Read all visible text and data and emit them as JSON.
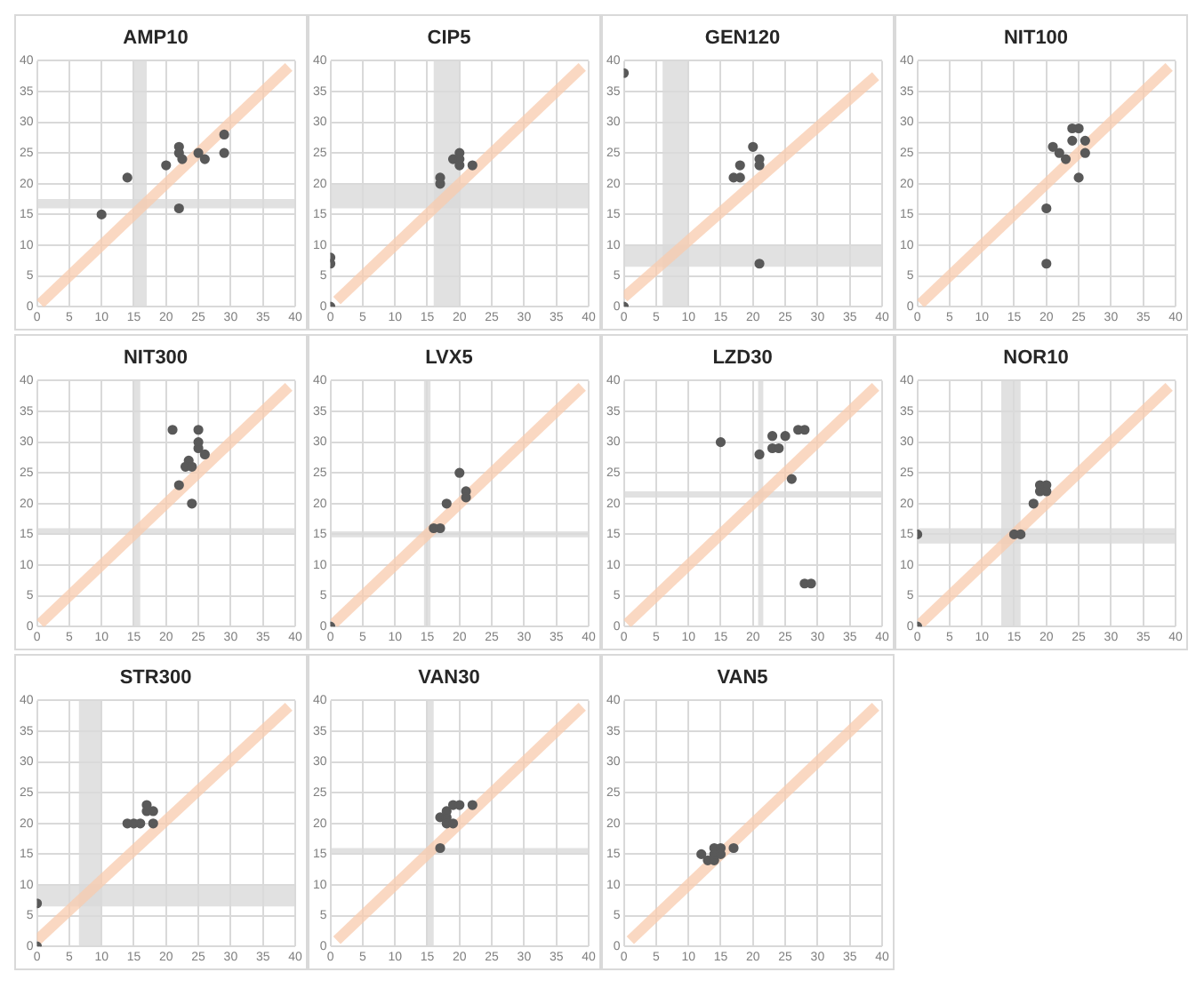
{
  "chart_data": [
    {
      "type": "scatter",
      "title": "AMP10",
      "xlim": [
        0,
        40
      ],
      "ylim": [
        0,
        40
      ],
      "xticks": [
        0,
        5,
        10,
        15,
        20,
        25,
        30,
        35,
        40
      ],
      "yticks": [
        0,
        5,
        10,
        15,
        20,
        25,
        30,
        35,
        40
      ],
      "grid": true,
      "bands": [
        {
          "axis": "x",
          "from": 15,
          "to": 17,
          "color": "#d9d9d9"
        },
        {
          "axis": "y",
          "from": 16,
          "to": 17.5,
          "color": "#d9d9d9"
        }
      ],
      "series": [
        {
          "type": "scatter",
          "marker": "circle",
          "color": "#595959",
          "x": [
            10,
            14,
            20,
            22,
            22,
            22.5,
            22,
            25,
            26,
            29,
            29
          ],
          "values": [
            15,
            21,
            23,
            26,
            25,
            24,
            16,
            25,
            24,
            28,
            25
          ]
        },
        {
          "type": "line",
          "marker": "none",
          "color": "#f8cbad",
          "x": [
            0.5,
            39
          ],
          "values": [
            0.5,
            39
          ]
        }
      ]
    },
    {
      "type": "scatter",
      "title": "CIP5",
      "xlim": [
        0,
        40
      ],
      "ylim": [
        0,
        40
      ],
      "xticks": [
        0,
        5,
        10,
        15,
        20,
        25,
        30,
        35,
        40
      ],
      "yticks": [
        0,
        5,
        10,
        15,
        20,
        25,
        30,
        35,
        40
      ],
      "grid": true,
      "bands": [
        {
          "axis": "x",
          "from": 16,
          "to": 20,
          "color": "#d9d9d9"
        },
        {
          "axis": "y",
          "from": 16,
          "to": 20,
          "color": "#d9d9d9"
        }
      ],
      "series": [
        {
          "type": "scatter",
          "marker": "circle",
          "color": "#595959",
          "x": [
            0,
            0,
            0,
            17,
            17,
            19,
            20,
            20,
            20,
            22
          ],
          "values": [
            0,
            7,
            8,
            20,
            21,
            24,
            24,
            25,
            23,
            23
          ]
        },
        {
          "type": "line",
          "marker": "none",
          "color": "#f8cbad",
          "x": [
            1,
            39
          ],
          "values": [
            1,
            39
          ]
        }
      ]
    },
    {
      "type": "scatter",
      "title": "GEN120",
      "xlim": [
        0,
        40
      ],
      "ylim": [
        0,
        40
      ],
      "xticks": [
        0,
        5,
        10,
        15,
        20,
        25,
        30,
        35,
        40
      ],
      "yticks": [
        0,
        5,
        10,
        15,
        20,
        25,
        30,
        35,
        40
      ],
      "grid": true,
      "bands": [
        {
          "axis": "x",
          "from": 6,
          "to": 10,
          "color": "#d9d9d9"
        },
        {
          "axis": "y",
          "from": 6.5,
          "to": 10,
          "color": "#d9d9d9"
        }
      ],
      "series": [
        {
          "type": "scatter",
          "marker": "circle",
          "color": "#595959",
          "x": [
            0,
            0,
            17,
            18,
            18,
            20,
            21,
            21,
            21
          ],
          "values": [
            38,
            0,
            21,
            21,
            23,
            26,
            24,
            23,
            7
          ]
        },
        {
          "type": "line",
          "marker": "none",
          "color": "#f8cbad",
          "x": [
            0,
            39
          ],
          "values": [
            1.5,
            37.5
          ]
        }
      ]
    },
    {
      "type": "scatter",
      "title": "NIT100",
      "xlim": [
        0,
        40
      ],
      "ylim": [
        0,
        40
      ],
      "xticks": [
        0,
        5,
        10,
        15,
        20,
        25,
        30,
        35,
        40
      ],
      "yticks": [
        0,
        5,
        10,
        15,
        20,
        25,
        30,
        35,
        40
      ],
      "grid": true,
      "series": [
        {
          "type": "scatter",
          "marker": "circle",
          "color": "#595959",
          "x": [
            20,
            20,
            21,
            22,
            23,
            24,
            25,
            24,
            26,
            26,
            25
          ],
          "values": [
            16,
            7,
            26,
            25,
            24,
            29,
            29,
            27,
            27,
            25,
            21
          ]
        },
        {
          "type": "line",
          "marker": "none",
          "color": "#f8cbad",
          "x": [
            0.5,
            39
          ],
          "values": [
            0.5,
            39
          ]
        }
      ]
    },
    {
      "type": "scatter",
      "title": "NIT300",
      "xlim": [
        0,
        40
      ],
      "ylim": [
        0,
        40
      ],
      "xticks": [
        0,
        5,
        10,
        15,
        20,
        25,
        30,
        35,
        40
      ],
      "yticks": [
        0,
        5,
        10,
        15,
        20,
        25,
        30,
        35,
        40
      ],
      "grid": true,
      "bands": [
        {
          "axis": "x",
          "from": 15,
          "to": 16,
          "color": "#d9d9d9"
        },
        {
          "axis": "y",
          "from": 15,
          "to": 16,
          "color": "#d9d9d9"
        }
      ],
      "series": [
        {
          "type": "scatter",
          "marker": "circle",
          "color": "#595959",
          "x": [
            21,
            25,
            25,
            25,
            26,
            23.5,
            23,
            24,
            22,
            24
          ],
          "values": [
            32,
            32,
            30,
            29,
            28,
            27,
            26,
            26,
            23,
            20
          ]
        },
        {
          "type": "line",
          "marker": "none",
          "color": "#f8cbad",
          "x": [
            0.5,
            39
          ],
          "values": [
            0.5,
            39
          ]
        }
      ]
    },
    {
      "type": "scatter",
      "title": "LVX5",
      "xlim": [
        0,
        40
      ],
      "ylim": [
        0,
        40
      ],
      "xticks": [
        0,
        5,
        10,
        15,
        20,
        25,
        30,
        35,
        40
      ],
      "yticks": [
        0,
        5,
        10,
        15,
        20,
        25,
        30,
        35,
        40
      ],
      "grid": true,
      "bands": [
        {
          "axis": "x",
          "from": 14.5,
          "to": 15.5,
          "color": "#d9d9d9"
        },
        {
          "axis": "y",
          "from": 14.5,
          "to": 15.5,
          "color": "#d9d9d9"
        }
      ],
      "series": [
        {
          "type": "scatter",
          "marker": "circle",
          "color": "#595959",
          "x": [
            0,
            16,
            17,
            18,
            20,
            21,
            21
          ],
          "values": [
            0,
            16,
            16,
            20,
            25,
            22,
            21
          ]
        },
        {
          "type": "line",
          "marker": "none",
          "color": "#f8cbad",
          "x": [
            0.5,
            39
          ],
          "values": [
            0.5,
            39
          ]
        }
      ]
    },
    {
      "type": "scatter",
      "title": "LZD30",
      "xlim": [
        0,
        40
      ],
      "ylim": [
        0,
        40
      ],
      "xticks": [
        0,
        5,
        10,
        15,
        20,
        25,
        30,
        35,
        40
      ],
      "yticks": [
        0,
        5,
        10,
        15,
        20,
        25,
        30,
        35,
        40
      ],
      "grid": true,
      "bands": [
        {
          "axis": "x",
          "from": 20.8,
          "to": 21.6,
          "color": "#d9d9d9"
        },
        {
          "axis": "y",
          "from": 21,
          "to": 22,
          "color": "#d9d9d9"
        }
      ],
      "series": [
        {
          "type": "scatter",
          "marker": "circle",
          "color": "#595959",
          "x": [
            15,
            21,
            23,
            25,
            23,
            24,
            27,
            28,
            26,
            28,
            29
          ],
          "values": [
            30,
            28,
            31,
            31,
            29,
            29,
            32,
            32,
            24,
            7,
            7
          ]
        },
        {
          "type": "line",
          "marker": "none",
          "color": "#f8cbad",
          "x": [
            0.5,
            39
          ],
          "values": [
            0.5,
            39
          ]
        }
      ]
    },
    {
      "type": "scatter",
      "title": "NOR10",
      "xlim": [
        0,
        40
      ],
      "ylim": [
        0,
        40
      ],
      "xticks": [
        0,
        5,
        10,
        15,
        20,
        25,
        30,
        35,
        40
      ],
      "yticks": [
        0,
        5,
        10,
        15,
        20,
        25,
        30,
        35,
        40
      ],
      "grid": true,
      "bands": [
        {
          "axis": "x",
          "from": 13,
          "to": 16,
          "color": "#d9d9d9"
        },
        {
          "axis": "y",
          "from": 13.5,
          "to": 16,
          "color": "#d9d9d9"
        }
      ],
      "series": [
        {
          "type": "scatter",
          "marker": "circle",
          "color": "#595959",
          "x": [
            0,
            0,
            15,
            16,
            18,
            19,
            19,
            20,
            20
          ],
          "values": [
            15,
            0,
            15,
            15,
            20,
            22,
            23,
            22,
            23
          ]
        },
        {
          "type": "line",
          "marker": "none",
          "color": "#f8cbad",
          "x": [
            0.5,
            39
          ],
          "values": [
            0.5,
            39
          ]
        }
      ]
    },
    {
      "type": "scatter",
      "title": "STR300",
      "xlim": [
        0,
        40
      ],
      "ylim": [
        0,
        40
      ],
      "xticks": [
        0,
        5,
        10,
        15,
        20,
        25,
        30,
        35,
        40
      ],
      "yticks": [
        0,
        5,
        10,
        15,
        20,
        25,
        30,
        35,
        40
      ],
      "grid": true,
      "bands": [
        {
          "axis": "x",
          "from": 6.5,
          "to": 10,
          "color": "#d9d9d9"
        },
        {
          "axis": "y",
          "from": 6.5,
          "to": 10,
          "color": "#d9d9d9"
        }
      ],
      "series": [
        {
          "type": "scatter",
          "marker": "circle",
          "color": "#595959",
          "x": [
            0,
            0,
            14,
            15,
            16,
            17,
            17,
            18,
            18
          ],
          "values": [
            7,
            0,
            20,
            20,
            20,
            22,
            23,
            22,
            20
          ]
        },
        {
          "type": "line",
          "marker": "none",
          "color": "#f8cbad",
          "x": [
            0,
            39
          ],
          "values": [
            1,
            39
          ]
        }
      ]
    },
    {
      "type": "scatter",
      "title": "VAN30",
      "xlim": [
        0,
        40
      ],
      "ylim": [
        0,
        40
      ],
      "xticks": [
        0,
        5,
        10,
        15,
        20,
        25,
        30,
        35,
        40
      ],
      "yticks": [
        0,
        5,
        10,
        15,
        20,
        25,
        30,
        35,
        40
      ],
      "grid": true,
      "bands": [
        {
          "axis": "x",
          "from": 15,
          "to": 16,
          "color": "#d9d9d9"
        },
        {
          "axis": "y",
          "from": 15,
          "to": 16,
          "color": "#d9d9d9"
        }
      ],
      "series": [
        {
          "type": "scatter",
          "marker": "circle",
          "color": "#595959",
          "x": [
            17,
            17,
            18,
            18,
            18,
            19,
            19,
            20,
            22
          ],
          "values": [
            16,
            21,
            21,
            22,
            20,
            20,
            23,
            23,
            23
          ]
        },
        {
          "type": "line",
          "marker": "none",
          "color": "#f8cbad",
          "x": [
            1,
            39
          ],
          "values": [
            1,
            39
          ]
        }
      ]
    },
    {
      "type": "scatter",
      "title": "VAN5",
      "xlim": [
        0,
        40
      ],
      "ylim": [
        0,
        40
      ],
      "xticks": [
        0,
        5,
        10,
        15,
        20,
        25,
        30,
        35,
        40
      ],
      "yticks": [
        0,
        5,
        10,
        15,
        20,
        25,
        30,
        35,
        40
      ],
      "grid": true,
      "series": [
        {
          "type": "scatter",
          "marker": "circle",
          "color": "#595959",
          "x": [
            12,
            13,
            14,
            14,
            14,
            15,
            15,
            17
          ],
          "values": [
            15,
            14,
            14,
            15,
            16,
            16,
            15,
            16
          ]
        },
        {
          "type": "line",
          "marker": "none",
          "color": "#f8cbad",
          "x": [
            1,
            39
          ],
          "values": [
            1,
            39
          ]
        }
      ]
    }
  ]
}
